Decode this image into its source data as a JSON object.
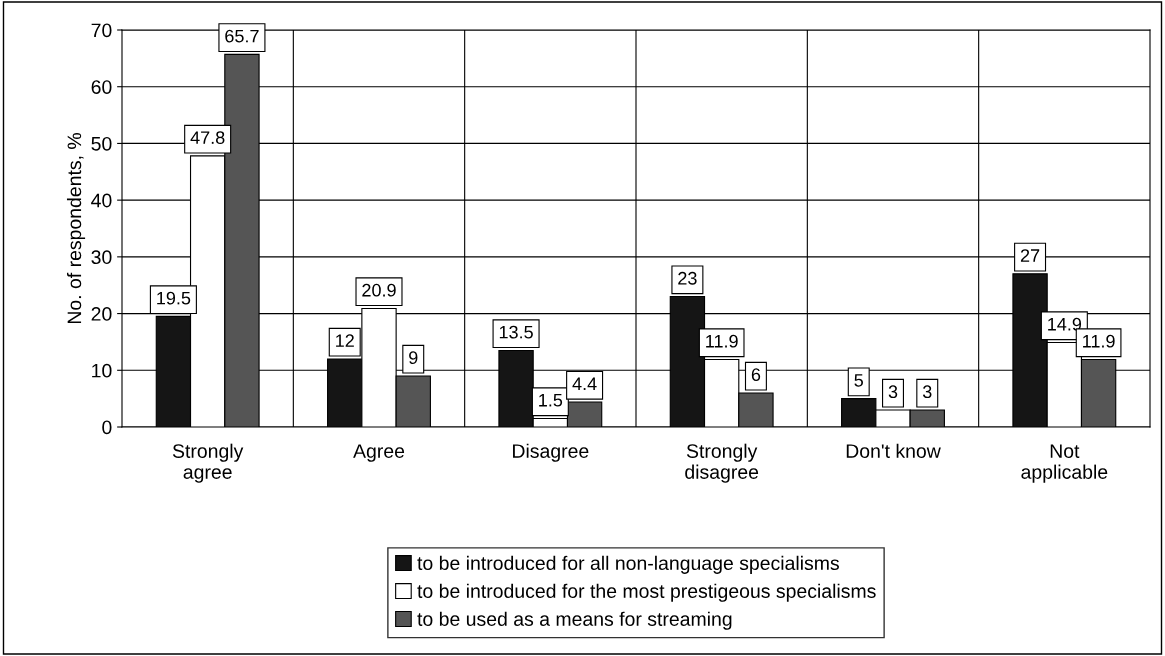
{
  "chart_data": {
    "type": "bar",
    "ylabel": "No. of respondents, %",
    "categories": [
      "Strongly\nagree",
      "Agree",
      "Disagree",
      "Strongly\ndisagree",
      "Don't know",
      "Not\napplicable"
    ],
    "series": [
      {
        "name": "to be introduced for all non-language specialisms",
        "color": "#151515",
        "values": [
          19.5,
          12,
          13.5,
          23,
          5,
          27
        ]
      },
      {
        "name": "to be introduced for the most prestigeous specialisms",
        "color": "#ffffff",
        "values": [
          47.8,
          20.9,
          1.5,
          11.9,
          3,
          14.9
        ]
      },
      {
        "name": "to be used as a means for streaming",
        "color": "#555555",
        "values": [
          65.7,
          9,
          4.4,
          6,
          3,
          11.9
        ]
      }
    ],
    "ylim": [
      0,
      70
    ],
    "yticks": [
      0,
      10,
      20,
      30,
      40,
      50,
      60,
      70
    ],
    "grid": true,
    "legend": "bottom",
    "data_labels": true
  }
}
